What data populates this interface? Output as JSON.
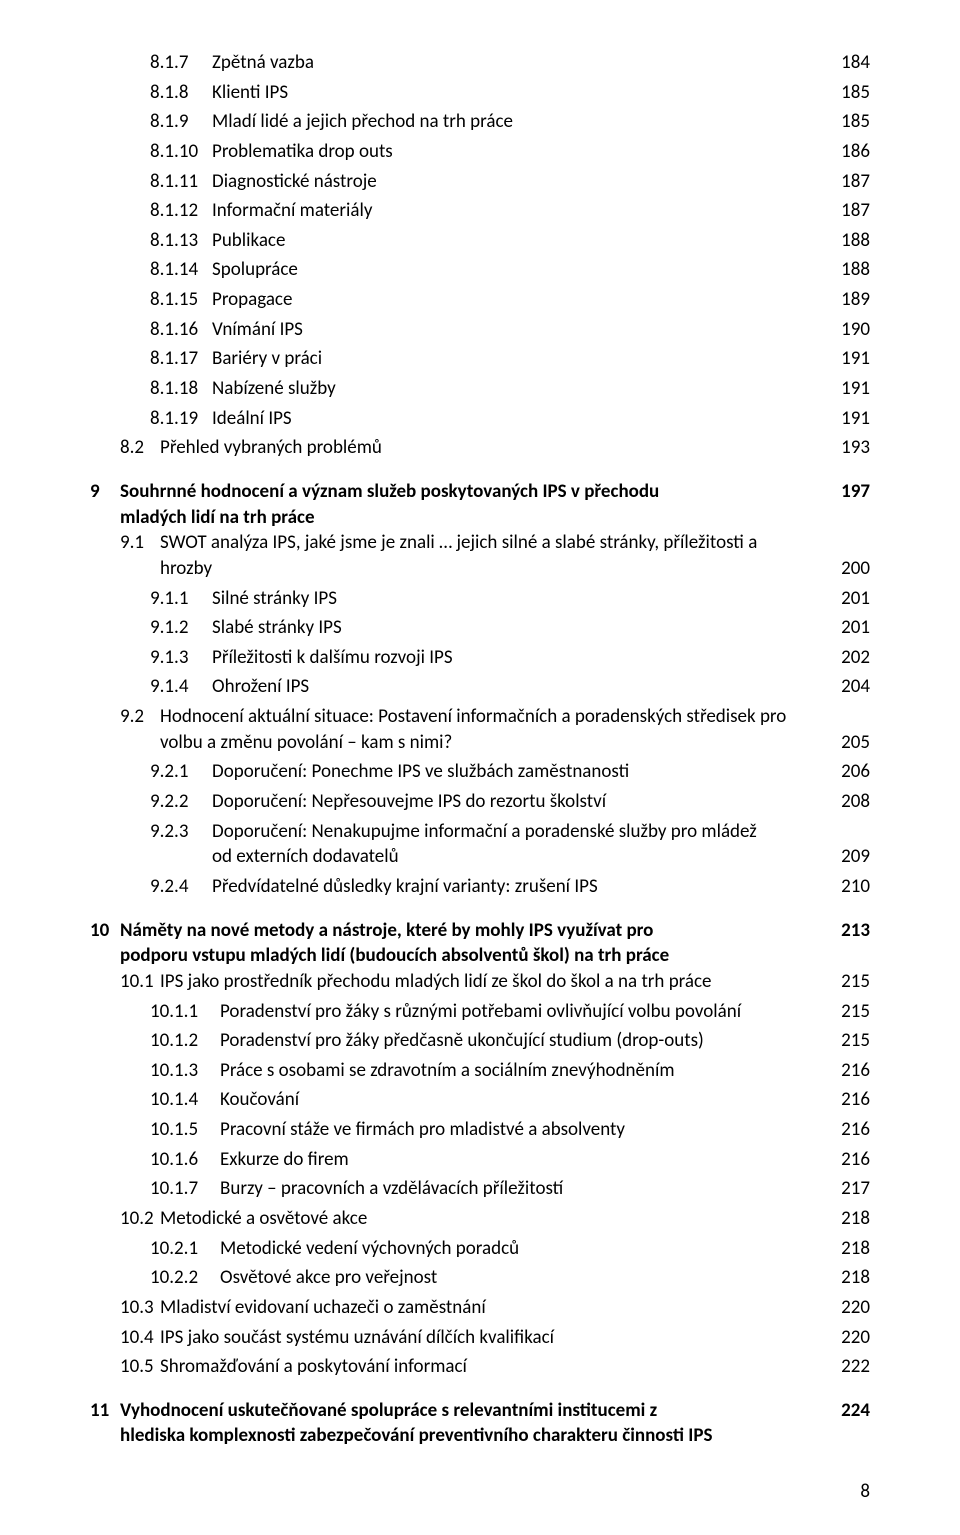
{
  "section8": {
    "items3": [
      {
        "num": "8.1.7",
        "label": "Zpětná vazba",
        "page": "184"
      },
      {
        "num": "8.1.8",
        "label": "Klienti IPS",
        "page": "185"
      },
      {
        "num": "8.1.9",
        "label": "Mladí lidé a jejich přechod na trh práce",
        "page": "185"
      },
      {
        "num": "8.1.10",
        "label": "Problematika drop outs",
        "page": "186"
      },
      {
        "num": "8.1.11",
        "label": "Diagnostické nástroje",
        "page": "187"
      },
      {
        "num": "8.1.12",
        "label": "Informační materiály",
        "page": "187"
      },
      {
        "num": "8.1.13",
        "label": "Publikace",
        "page": "188"
      },
      {
        "num": "8.1.14",
        "label": "Spolupráce",
        "page": "188"
      },
      {
        "num": "8.1.15",
        "label": "Propagace",
        "page": "189"
      },
      {
        "num": "8.1.16",
        "label": "Vnímání IPS",
        "page": "190"
      },
      {
        "num": "8.1.17",
        "label": "Bariéry v práci",
        "page": "191"
      },
      {
        "num": "8.1.18",
        "label": "Nabízené služby",
        "page": "191"
      },
      {
        "num": "8.1.19",
        "label": "Ideální IPS",
        "page": "191"
      }
    ],
    "item82": {
      "num": "8.2",
      "label": "Přehled vybraných problémů",
      "page": "193"
    }
  },
  "section9": {
    "num": "9",
    "title_l1": "Souhrnné hodnocení a význam služeb poskytovaných IPS v přechodu",
    "title_l2": "mladých lidí na trh práce",
    "page": "197",
    "i91": {
      "num": "9.1",
      "l1": "SWOT analýza IPS, jaké jsme je znali … jejich silné a slabé stránky, příležitosti a",
      "l2": "hrozby",
      "page": "200"
    },
    "i911": {
      "num": "9.1.1",
      "label": "Silné stránky IPS",
      "page": "201"
    },
    "i912": {
      "num": "9.1.2",
      "label": "Slabé stránky IPS",
      "page": "201"
    },
    "i913": {
      "num": "9.1.3",
      "label": "Příležitosti k dalšímu rozvoji IPS",
      "page": "202"
    },
    "i914": {
      "num": "9.1.4",
      "label": "Ohrožení IPS",
      "page": "204"
    },
    "i92": {
      "num": "9.2",
      "l1": "Hodnocení aktuální situace: Postavení informačních a poradenských středisek pro",
      "l2": "volbu a změnu povolání – kam s nimi?",
      "page": "205"
    },
    "i921": {
      "num": "9.2.1",
      "label": "Doporučení: Ponechme IPS ve službách zaměstnanosti",
      "page": "206"
    },
    "i922": {
      "num": "9.2.2",
      "label": "Doporučení: Nepřesouvejme IPS do rezortu školství",
      "page": "208"
    },
    "i923": {
      "num": "9.2.3",
      "l1": "Doporučení: Nenakupujme informační a poradenské služby pro mládež",
      "l2": "od externích dodavatelů",
      "page": "209"
    },
    "i924": {
      "num": "9.2.4",
      "label": "Předvídatelné důsledky krajní varianty: zrušení IPS",
      "page": "210"
    }
  },
  "section10": {
    "num": "10",
    "title_l1": "Náměty na nové metody a nástroje, které by mohly IPS využívat pro",
    "title_l2": "podporu vstupu mladých lidí (budoucích absolventů škol) na trh práce",
    "page": "213",
    "i101": {
      "num": "10.1",
      "label": "IPS jako prostředník přechodu mladých lidí ze škol do škol a na trh práce",
      "page": "215"
    },
    "i1011": {
      "num": "10.1.1",
      "label": "Poradenství pro žáky s různými potřebami ovlivňující volbu povolání",
      "page": "215"
    },
    "i1012": {
      "num": "10.1.2",
      "label": "Poradenství pro žáky předčasně ukončující studium (drop-outs)",
      "page": "215"
    },
    "i1013": {
      "num": "10.1.3",
      "label": "Práce s osobami se zdravotním a sociálním znevýhodněním",
      "page": "216"
    },
    "i1014": {
      "num": "10.1.4",
      "label": "Koučování",
      "page": "216"
    },
    "i1015": {
      "num": "10.1.5",
      "label": "Pracovní stáže ve firmách pro mladistvé a absolventy",
      "page": "216"
    },
    "i1016": {
      "num": "10.1.6",
      "label": "Exkurze do firem",
      "page": "216"
    },
    "i1017": {
      "num": "10.1.7",
      "label": "Burzy – pracovních a vzdělávacích příležitostí",
      "page": "217"
    },
    "i102": {
      "num": "10.2",
      "label": "Metodické a osvětové akce",
      "page": "218"
    },
    "i1021": {
      "num": "10.2.1",
      "label": "Metodické vedení výchovných poradců",
      "page": "218"
    },
    "i1022": {
      "num": "10.2.2",
      "label": "Osvětové akce pro veřejnost",
      "page": "218"
    },
    "i103": {
      "num": "10.3",
      "label": "Mladiství evidovaní uchazeči o zaměstnání",
      "page": "220"
    },
    "i104": {
      "num": "10.4",
      "label": "IPS jako součást systému uznávání dílčích kvalifikací",
      "page": "220"
    },
    "i105": {
      "num": "10.5",
      "label": "Shromažďování a poskytování informací",
      "page": "222"
    }
  },
  "section11": {
    "num": "11",
    "title_l1": "Vyhodnocení uskutečňované spolupráce s relevantními institucemi z",
    "title_l2": "hlediska komplexnosti zabezpečování preventivního charakteru činnosti IPS",
    "page": "224"
  },
  "footer": {
    "page": "8"
  },
  "colors": {
    "text": "#000000",
    "bg": "#ffffff"
  },
  "typography": {
    "base_size_pt": 14,
    "title_weight": 700
  }
}
